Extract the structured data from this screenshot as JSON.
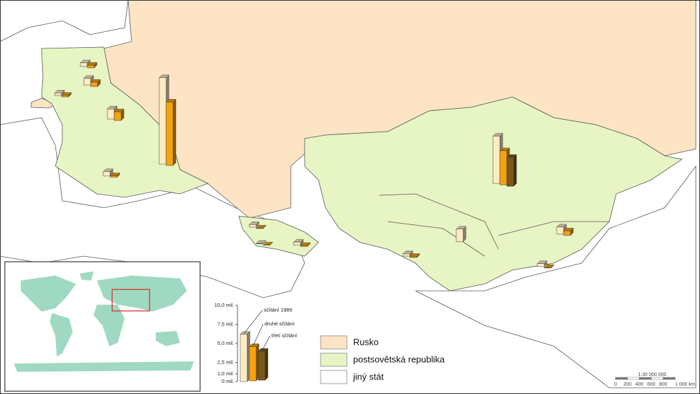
{
  "map": {
    "legend": [
      {
        "label": "Rusko",
        "color": "#fde4c4"
      },
      {
        "label": "postsovětská republika",
        "color": "#e6f5c3"
      },
      {
        "label": "jiný stát",
        "color": "#ffffff"
      }
    ],
    "bar_legend": {
      "series": [
        {
          "name": "sčítání 1989",
          "color": "#fdebc4"
        },
        {
          "name": "druhé sčítání",
          "color": "#f5a20f"
        },
        {
          "name": "třetí sčítání",
          "color": "#7a5818"
        }
      ],
      "ylim": [
        0,
        10
      ],
      "yticks": [
        {
          "value": 0,
          "label": "0 mil."
        },
        {
          "value": 1,
          "label": "1,0 mil."
        },
        {
          "value": 2.5,
          "label": "2,5 mil."
        },
        {
          "value": 5,
          "label": "5,0 mil."
        },
        {
          "value": 7.5,
          "label": "7,5 mil."
        },
        {
          "value": 10,
          "label": "10,0 mil."
        }
      ],
      "values": [
        6.2,
        4.5,
        3.8
      ]
    },
    "regions": [
      {
        "values": [
          0.47,
          0.35
        ]
      },
      {
        "values": [
          0.9,
          0.56
        ]
      },
      {
        "values": [
          0.34,
          0.22
        ]
      },
      {
        "values": [
          1.34,
          1.14
        ]
      },
      {
        "values": [
          11.36,
          8.33
        ]
      },
      {
        "values": [
          0.56,
          0.2
        ]
      },
      {
        "values": [
          0.34,
          0.07
        ]
      },
      {
        "values": [
          0.05,
          0.02
        ]
      },
      {
        "values": [
          0.39,
          0.14
        ]
      },
      {
        "values": [
          6.23,
          4.48,
          3.79
        ]
      },
      {
        "values": [
          1.65
        ]
      },
      {
        "values": [
          0.33,
          0.15
        ]
      },
      {
        "values": [
          0.92,
          0.6
        ]
      },
      {
        "values": [
          0.39,
          0.07
        ]
      }
    ],
    "scale": {
      "ratio": "1:30 000 000",
      "ticks": [
        0,
        200,
        400,
        600,
        800,
        {
          "value": 1000,
          "label": "1 000 km"
        }
      ]
    }
  }
}
